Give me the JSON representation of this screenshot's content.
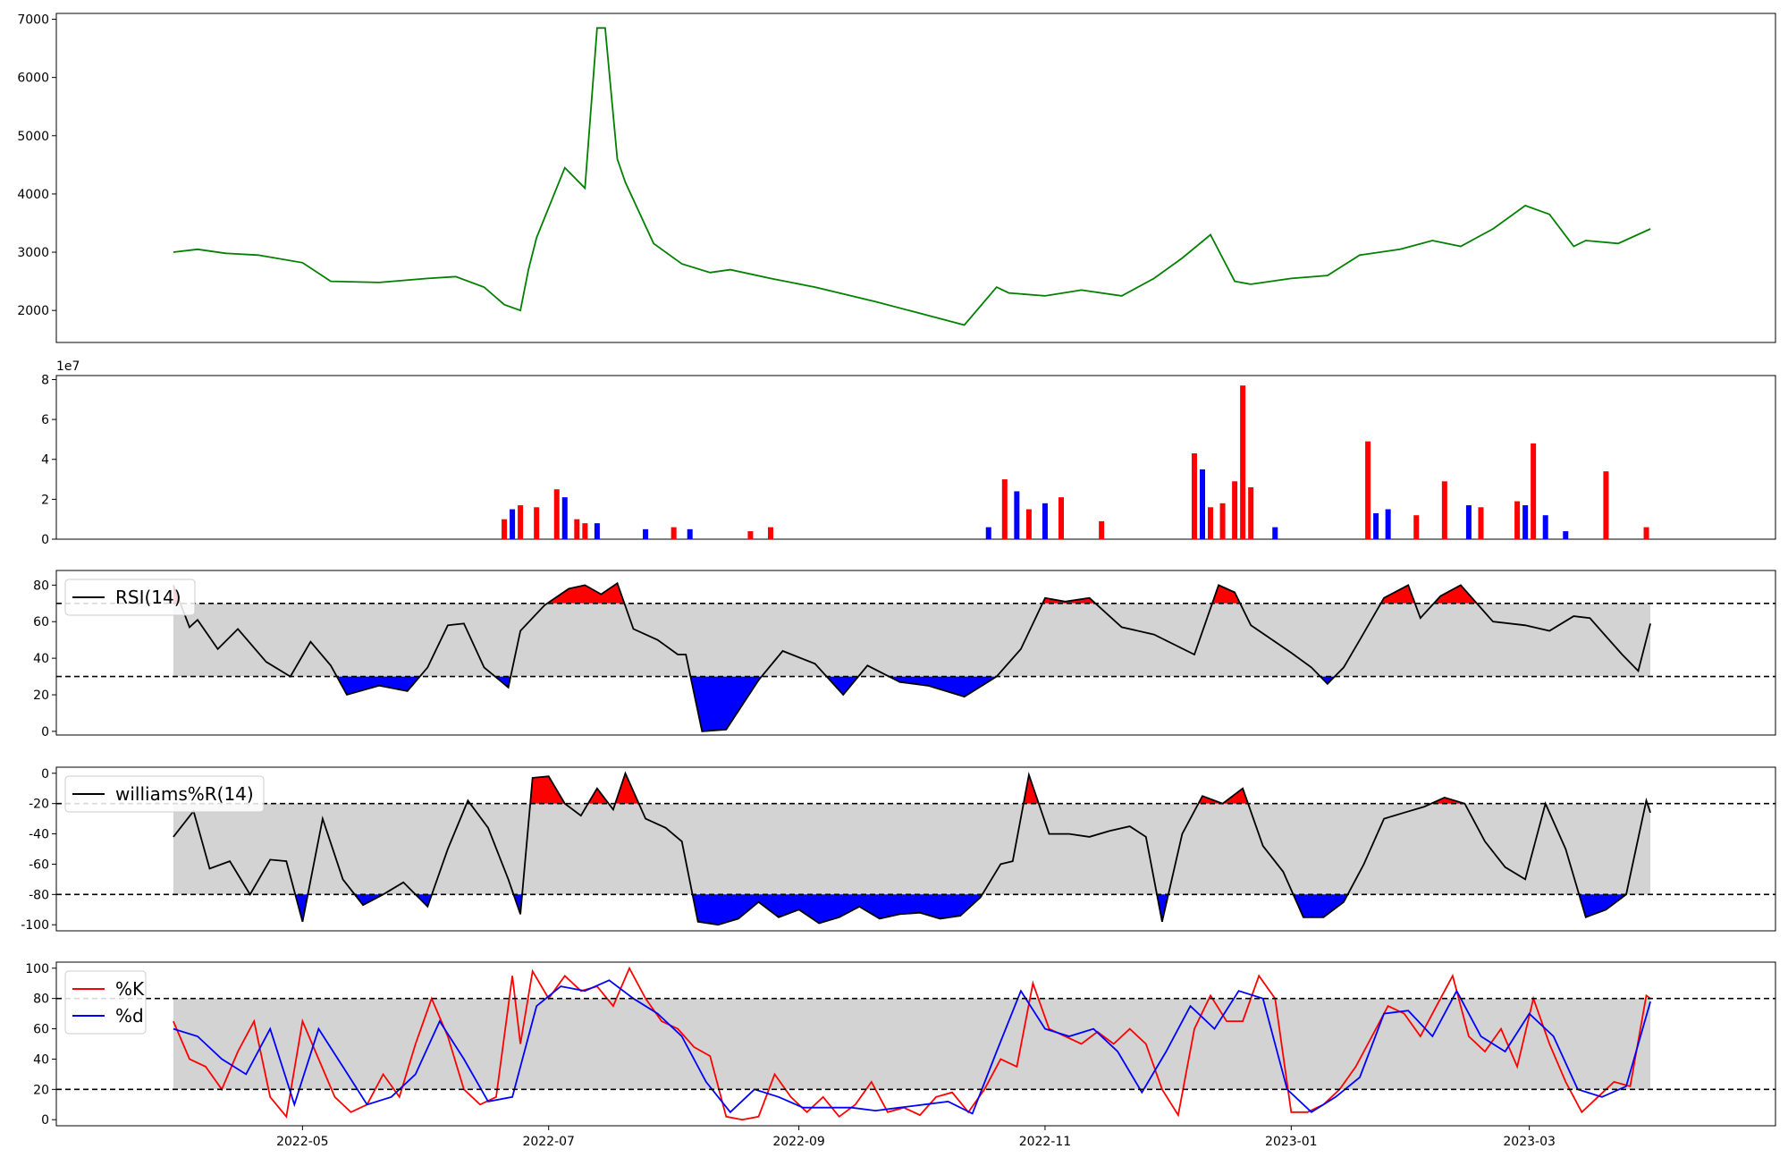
{
  "x_ticks": [
    "2022-05",
    "2022-07",
    "2022-09",
    "2022-11",
    "2023-01",
    "2023-03"
  ],
  "chart_data": [
    {
      "type": "line",
      "panel": "price",
      "ylim": [
        1450,
        7100
      ],
      "yticks": [
        2000,
        3000,
        4000,
        5000,
        6000,
        7000
      ],
      "line_color": "#008000",
      "x": [
        "2022-03-30",
        "2022-04-05",
        "2022-04-12",
        "2022-04-20",
        "2022-05-01",
        "2022-05-08",
        "2022-05-20",
        "2022-06-01",
        "2022-06-08",
        "2022-06-15",
        "2022-06-20",
        "2022-06-24",
        "2022-06-26",
        "2022-06-28",
        "2022-07-05",
        "2022-07-10",
        "2022-07-13",
        "2022-07-15",
        "2022-07-18",
        "2022-07-20",
        "2022-07-27",
        "2022-08-03",
        "2022-08-10",
        "2022-08-15",
        "2022-08-25",
        "2022-09-05",
        "2022-09-20",
        "2022-10-01",
        "2022-10-12",
        "2022-10-20",
        "2022-10-23",
        "2022-11-01",
        "2022-11-10",
        "2022-11-20",
        "2022-11-28",
        "2022-12-05",
        "2022-12-12",
        "2022-12-18",
        "2022-12-22",
        "2023-01-01",
        "2023-01-10",
        "2023-01-18",
        "2023-01-28",
        "2023-02-05",
        "2023-02-12",
        "2023-02-20",
        "2023-02-28",
        "2023-03-06",
        "2023-03-12",
        "2023-03-15",
        "2023-03-23",
        "2023-03-31"
      ],
      "values": [
        3000,
        3050,
        2980,
        2950,
        2820,
        2500,
        2480,
        2550,
        2580,
        2400,
        2100,
        2000,
        2700,
        3250,
        4450,
        4100,
        6850,
        6850,
        4600,
        4200,
        3150,
        2800,
        2650,
        2700,
        2550,
        2400,
        2150,
        1950,
        1750,
        2400,
        2300,
        2250,
        2350,
        2250,
        2550,
        2900,
        3300,
        2500,
        2450,
        2550,
        2600,
        2950,
        3050,
        3200,
        3100,
        3400,
        3800,
        3650,
        3100,
        3200,
        3150,
        3400
      ]
    },
    {
      "type": "bar",
      "panel": "volume",
      "ylim": [
        0,
        8.2
      ],
      "yticks": [
        0,
        2,
        4,
        6,
        8
      ],
      "scale_label": "1e7",
      "up_color": "#ff0000",
      "down_color": "#0000ff",
      "series": [
        {
          "color": "up",
          "x": [
            "2022-06-20",
            "2022-06-24",
            "2022-06-28",
            "2022-07-03",
            "2022-07-08",
            "2022-07-10",
            "2022-08-01",
            "2022-08-20",
            "2022-08-25",
            "2022-10-22",
            "2022-10-28",
            "2022-11-05",
            "2022-11-15",
            "2022-12-08",
            "2022-12-12",
            "2022-12-15",
            "2022-12-18",
            "2022-12-20",
            "2022-12-22",
            "2023-01-20",
            "2023-02-01",
            "2023-02-08",
            "2023-02-17",
            "2023-02-26",
            "2023-03-02",
            "2023-03-20",
            "2023-03-30"
          ],
          "values": [
            1.0,
            1.7,
            1.6,
            2.5,
            1.0,
            0.8,
            0.6,
            0.4,
            0.6,
            3.0,
            1.5,
            2.1,
            0.9,
            4.3,
            1.6,
            1.8,
            2.9,
            7.7,
            2.6,
            4.9,
            1.2,
            2.9,
            1.6,
            1.9,
            4.8,
            3.4,
            0.6
          ]
        },
        {
          "color": "down",
          "x": [
            "2022-06-22",
            "2022-07-05",
            "2022-07-13",
            "2022-07-25",
            "2022-08-05",
            "2022-10-18",
            "2022-10-25",
            "2022-11-01",
            "2022-12-10",
            "2022-12-28",
            "2023-01-22",
            "2023-01-25",
            "2023-02-14",
            "2023-02-28",
            "2023-03-05",
            "2023-03-10"
          ],
          "values": [
            1.5,
            2.1,
            0.8,
            0.5,
            0.5,
            0.6,
            2.4,
            1.8,
            3.5,
            0.6,
            1.3,
            1.5,
            1.7,
            1.7,
            1.2,
            0.4
          ]
        }
      ]
    },
    {
      "type": "line",
      "panel": "rsi",
      "ylim": [
        -2,
        88
      ],
      "yticks": [
        0,
        20,
        40,
        60,
        80
      ],
      "legend": [
        "RSI(14)"
      ],
      "legend_position": "top-left",
      "thresholds": [
        30,
        70
      ],
      "band_color": "#d3d3d3",
      "above_color": "#ff0000",
      "below_color": "#0000ff",
      "x": [
        "2022-03-30",
        "2022-04-03",
        "2022-04-05",
        "2022-04-10",
        "2022-04-15",
        "2022-04-22",
        "2022-04-28",
        "2022-05-03",
        "2022-05-08",
        "2022-05-12",
        "2022-05-20",
        "2022-05-27",
        "2022-06-01",
        "2022-06-06",
        "2022-06-10",
        "2022-06-15",
        "2022-06-21",
        "2022-06-24",
        "2022-06-30",
        "2022-07-06",
        "2022-07-10",
        "2022-07-14",
        "2022-07-18",
        "2022-07-22",
        "2022-07-28",
        "2022-08-02",
        "2022-08-04",
        "2022-08-08",
        "2022-08-14",
        "2022-08-22",
        "2022-08-28",
        "2022-09-05",
        "2022-09-12",
        "2022-09-18",
        "2022-09-26",
        "2022-10-03",
        "2022-10-12",
        "2022-10-20",
        "2022-10-26",
        "2022-11-01",
        "2022-11-06",
        "2022-11-12",
        "2022-11-20",
        "2022-11-28",
        "2022-12-08",
        "2022-12-14",
        "2022-12-18",
        "2022-12-22",
        "2023-01-01",
        "2023-01-06",
        "2023-01-10",
        "2023-01-14",
        "2023-01-18",
        "2023-01-24",
        "2023-01-30",
        "2023-02-02",
        "2023-02-07",
        "2023-02-12",
        "2023-02-20",
        "2023-02-28",
        "2023-03-06",
        "2023-03-12",
        "2023-03-16",
        "2023-03-20",
        "2023-03-24",
        "2023-03-28",
        "2023-03-31"
      ],
      "values": [
        80,
        57,
        61,
        45,
        56,
        38,
        30,
        49,
        36,
        20,
        25,
        22,
        35,
        58,
        59,
        35,
        24,
        55,
        69,
        78,
        80,
        75,
        81,
        56,
        50,
        42,
        42,
        0,
        1,
        28,
        44,
        37,
        20,
        36,
        27,
        25,
        19,
        30,
        45,
        73,
        71,
        73,
        57,
        53,
        42,
        80,
        76,
        58,
        43,
        35,
        26,
        35,
        50,
        73,
        80,
        62,
        74,
        80,
        60,
        58,
        55,
        63,
        62,
        52,
        42,
        33,
        59
      ]
    },
    {
      "type": "line",
      "panel": "williams",
      "ylim": [
        -104,
        4
      ],
      "yticks": [
        0,
        -20,
        -40,
        -60,
        -80,
        -100
      ],
      "legend": [
        "williams%R(14)"
      ],
      "legend_position": "top-left",
      "thresholds": [
        -80,
        -20
      ],
      "band_color": "#d3d3d3",
      "above_color": "#ff0000",
      "below_color": "#0000ff",
      "x": [
        "2022-03-30",
        "2022-04-04",
        "2022-04-08",
        "2022-04-13",
        "2022-04-18",
        "2022-04-23",
        "2022-04-27",
        "2022-05-01",
        "2022-05-06",
        "2022-05-11",
        "2022-05-16",
        "2022-05-21",
        "2022-05-26",
        "2022-06-01",
        "2022-06-06",
        "2022-06-11",
        "2022-06-16",
        "2022-06-21",
        "2022-06-24",
        "2022-06-27",
        "2022-07-01",
        "2022-07-05",
        "2022-07-09",
        "2022-07-13",
        "2022-07-17",
        "2022-07-20",
        "2022-07-25",
        "2022-07-30",
        "2022-08-03",
        "2022-08-07",
        "2022-08-12",
        "2022-08-17",
        "2022-08-22",
        "2022-08-27",
        "2022-09-01",
        "2022-09-06",
        "2022-09-11",
        "2022-09-16",
        "2022-09-21",
        "2022-09-26",
        "2022-10-01",
        "2022-10-06",
        "2022-10-11",
        "2022-10-16",
        "2022-10-21",
        "2022-10-24",
        "2022-10-28",
        "2022-11-02",
        "2022-11-07",
        "2022-11-12",
        "2022-11-17",
        "2022-11-22",
        "2022-11-26",
        "2022-11-30",
        "2022-12-05",
        "2022-12-10",
        "2022-12-15",
        "2022-12-20",
        "2022-12-25",
        "2022-12-30",
        "2023-01-04",
        "2023-01-09",
        "2023-01-14",
        "2023-01-19",
        "2023-01-24",
        "2023-01-29",
        "2023-02-03",
        "2023-02-08",
        "2023-02-13",
        "2023-02-18",
        "2023-02-23",
        "2023-02-28",
        "2023-03-05",
        "2023-03-10",
        "2023-03-15",
        "2023-03-20",
        "2023-03-25",
        "2023-03-30",
        "2023-03-31"
      ],
      "values": [
        -42,
        -25,
        -63,
        -58,
        -80,
        -57,
        -58,
        -98,
        -30,
        -70,
        -87,
        -80,
        -72,
        -88,
        -50,
        -18,
        -36,
        -70,
        -93,
        -3,
        -2,
        -20,
        -28,
        -10,
        -24,
        0,
        -30,
        -36,
        -45,
        -98,
        -100,
        -96,
        -85,
        -95,
        -90,
        -99,
        -95,
        -88,
        -96,
        -93,
        -92,
        -96,
        -94,
        -82,
        -60,
        -58,
        -1,
        -40,
        -40,
        -42,
        -38,
        -35,
        -42,
        -98,
        -40,
        -15,
        -20,
        -10,
        -48,
        -65,
        -95,
        -95,
        -85,
        -60,
        -30,
        -26,
        -22,
        -16,
        -20,
        -45,
        -62,
        -70,
        -20,
        -50,
        -95,
        -90,
        -80,
        -18,
        -26
      ]
    },
    {
      "type": "line",
      "panel": "stochastic",
      "ylim": [
        -4,
        104
      ],
      "yticks": [
        0,
        20,
        40,
        60,
        80,
        100
      ],
      "legend_position": "top-left",
      "thresholds": [
        20,
        80
      ],
      "band_color": "#d3d3d3",
      "series": [
        {
          "name": "%K",
          "color": "#ff0000",
          "x": [
            "2022-03-30",
            "2022-04-03",
            "2022-04-07",
            "2022-04-11",
            "2022-04-15",
            "2022-04-19",
            "2022-04-23",
            "2022-04-27",
            "2022-05-01",
            "2022-05-05",
            "2022-05-09",
            "2022-05-13",
            "2022-05-17",
            "2022-05-21",
            "2022-05-25",
            "2022-05-29",
            "2022-06-02",
            "2022-06-06",
            "2022-06-10",
            "2022-06-14",
            "2022-06-18",
            "2022-06-22",
            "2022-06-24",
            "2022-06-27",
            "2022-07-01",
            "2022-07-05",
            "2022-07-09",
            "2022-07-13",
            "2022-07-17",
            "2022-07-21",
            "2022-07-25",
            "2022-07-29",
            "2022-08-02",
            "2022-08-06",
            "2022-08-10",
            "2022-08-14",
            "2022-08-18",
            "2022-08-22",
            "2022-08-26",
            "2022-08-30",
            "2022-09-03",
            "2022-09-07",
            "2022-09-11",
            "2022-09-15",
            "2022-09-19",
            "2022-09-23",
            "2022-09-27",
            "2022-10-01",
            "2022-10-05",
            "2022-10-09",
            "2022-10-13",
            "2022-10-17",
            "2022-10-21",
            "2022-10-25",
            "2022-10-29",
            "2022-11-02",
            "2022-11-06",
            "2022-11-10",
            "2022-11-14",
            "2022-11-18",
            "2022-11-22",
            "2022-11-26",
            "2022-11-30",
            "2022-12-04",
            "2022-12-08",
            "2022-12-12",
            "2022-12-16",
            "2022-12-20",
            "2022-12-24",
            "2022-12-28",
            "2023-01-01",
            "2023-01-05",
            "2023-01-09",
            "2023-01-13",
            "2023-01-17",
            "2023-01-21",
            "2023-01-25",
            "2023-01-29",
            "2023-02-02",
            "2023-02-06",
            "2023-02-10",
            "2023-02-14",
            "2023-02-18",
            "2023-02-22",
            "2023-02-26",
            "2023-03-02",
            "2023-03-06",
            "2023-03-10",
            "2023-03-14",
            "2023-03-18",
            "2023-03-22",
            "2023-03-26",
            "2023-03-30",
            "2023-03-31"
          ],
          "values": [
            65,
            40,
            35,
            20,
            45,
            65,
            15,
            2,
            65,
            40,
            15,
            5,
            10,
            30,
            15,
            50,
            80,
            55,
            20,
            10,
            15,
            95,
            50,
            98,
            80,
            95,
            85,
            88,
            75,
            100,
            80,
            65,
            60,
            48,
            42,
            2,
            0,
            2,
            30,
            15,
            5,
            15,
            2,
            10,
            25,
            5,
            8,
            3,
            15,
            18,
            5,
            20,
            40,
            35,
            90,
            60,
            55,
            50,
            58,
            50,
            60,
            50,
            20,
            3,
            60,
            82,
            65,
            65,
            95,
            80,
            5,
            5,
            10,
            20,
            35,
            55,
            75,
            70,
            55,
            75,
            95,
            55,
            45,
            60,
            35,
            80,
            50,
            25,
            5,
            15,
            25,
            22,
            82,
            80
          ]
        },
        {
          "name": "%d",
          "color": "#0000ff",
          "x": [
            "2022-03-30",
            "2022-04-05",
            "2022-04-11",
            "2022-04-17",
            "2022-04-23",
            "2022-04-29",
            "2022-05-05",
            "2022-05-11",
            "2022-05-17",
            "2022-05-23",
            "2022-05-29",
            "2022-06-04",
            "2022-06-10",
            "2022-06-16",
            "2022-06-22",
            "2022-06-28",
            "2022-07-04",
            "2022-07-10",
            "2022-07-16",
            "2022-07-22",
            "2022-07-28",
            "2022-08-03",
            "2022-08-09",
            "2022-08-15",
            "2022-08-21",
            "2022-08-27",
            "2022-09-02",
            "2022-09-08",
            "2022-09-14",
            "2022-09-20",
            "2022-09-26",
            "2022-10-02",
            "2022-10-08",
            "2022-10-14",
            "2022-10-20",
            "2022-10-26",
            "2022-11-01",
            "2022-11-07",
            "2022-11-13",
            "2022-11-19",
            "2022-11-25",
            "2022-12-01",
            "2022-12-07",
            "2022-12-13",
            "2022-12-19",
            "2022-12-25",
            "2022-12-31",
            "2023-01-06",
            "2023-01-12",
            "2023-01-18",
            "2023-01-24",
            "2023-01-30",
            "2023-02-05",
            "2023-02-11",
            "2023-02-17",
            "2023-02-23",
            "2023-03-01",
            "2023-03-07",
            "2023-03-13",
            "2023-03-19",
            "2023-03-25",
            "2023-03-31"
          ],
          "values": [
            60,
            55,
            40,
            30,
            60,
            10,
            60,
            35,
            10,
            15,
            30,
            65,
            40,
            12,
            15,
            75,
            88,
            85,
            92,
            80,
            70,
            55,
            25,
            5,
            20,
            15,
            8,
            8,
            8,
            6,
            8,
            10,
            12,
            4,
            45,
            85,
            60,
            55,
            60,
            45,
            18,
            45,
            75,
            60,
            85,
            80,
            20,
            5,
            15,
            28,
            70,
            72,
            55,
            85,
            55,
            45,
            70,
            55,
            20,
            15,
            22,
            78
          ]
        }
      ]
    }
  ]
}
